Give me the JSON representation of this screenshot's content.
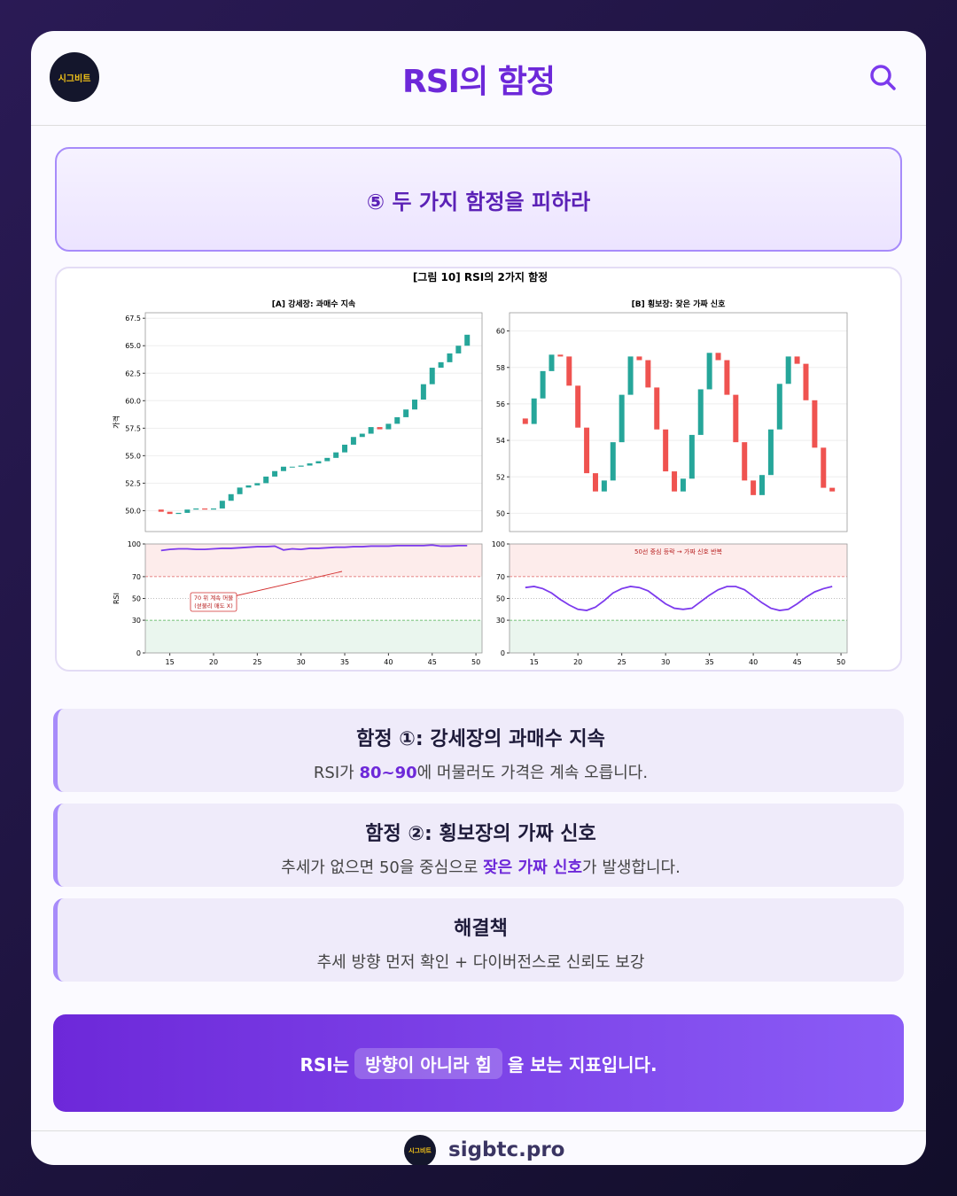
{
  "header": {
    "logo": "시그비트",
    "title": "RSI의 함정"
  },
  "section": {
    "title": "⑤ 두 가지 함정을 피하라"
  },
  "figure": {
    "title": "[그림 10] RSI의 2가지 함정"
  },
  "chart_data": [
    {
      "type": "candlestick",
      "title": "[A] 강세장: 과매수 지속",
      "ylabel": "가격",
      "color_up": "#26a69a",
      "color_down": "#ef5350",
      "x": [
        14,
        15,
        16,
        17,
        18,
        19,
        20,
        21,
        22,
        23,
        24,
        25,
        26,
        27,
        28,
        29,
        30,
        31,
        32,
        33,
        34,
        35,
        36,
        37,
        38,
        39,
        40,
        41,
        42,
        43,
        44,
        45,
        46,
        47,
        48,
        49
      ],
      "open": [
        50.1,
        49.9,
        49.7,
        49.8,
        50.1,
        50.2,
        50.1,
        50.2,
        50.9,
        51.5,
        52.1,
        52.3,
        52.5,
        53.1,
        53.6,
        54.0,
        54.0,
        54.1,
        54.3,
        54.5,
        54.8,
        55.3,
        56.0,
        56.7,
        57.0,
        57.6,
        57.4,
        57.9,
        58.5,
        59.2,
        60.1,
        61.5,
        63.0,
        63.5,
        64.3,
        65.0
      ],
      "close": [
        49.9,
        49.7,
        49.8,
        50.1,
        50.2,
        50.1,
        50.2,
        50.9,
        51.5,
        52.1,
        52.3,
        52.5,
        53.1,
        53.6,
        54.0,
        54.0,
        54.1,
        54.3,
        54.5,
        54.8,
        55.3,
        56.0,
        56.7,
        57.0,
        57.6,
        57.4,
        57.9,
        58.5,
        59.2,
        60.1,
        61.5,
        63.0,
        63.5,
        64.3,
        65.0,
        66.0
      ],
      "xlim": [
        12.2,
        50.7
      ],
      "ylim": [
        48.1,
        68.0
      ],
      "yticks": [
        {
          "value": 50,
          "label": "50.0"
        },
        52.5,
        {
          "value": 55,
          "label": "55.0"
        },
        57.5,
        {
          "value": 60,
          "label": "60.0"
        },
        62.5,
        {
          "value": 65,
          "label": "65.0"
        },
        67.5
      ]
    },
    {
      "type": "candlestick",
      "title": "[B] 횡보장: 잦은 가짜 신호",
      "color_up": "#26a69a",
      "color_down": "#ef5350",
      "x": [
        14,
        15,
        16,
        17,
        18,
        19,
        20,
        21,
        22,
        23,
        24,
        25,
        26,
        27,
        28,
        29,
        30,
        31,
        32,
        33,
        34,
        35,
        36,
        37,
        38,
        39,
        40,
        41,
        42,
        43,
        44,
        45,
        46,
        47,
        48,
        49
      ],
      "open": [
        55.2,
        54.9,
        56.3,
        57.8,
        58.7,
        58.6,
        57.0,
        54.7,
        52.2,
        51.2,
        51.8,
        53.9,
        56.5,
        58.6,
        58.4,
        56.9,
        54.6,
        52.3,
        51.2,
        51.9,
        54.3,
        56.8,
        58.8,
        58.4,
        56.5,
        53.9,
        51.8,
        51.0,
        52.1,
        54.6,
        57.1,
        58.6,
        58.2,
        56.2,
        53.6,
        51.4
      ],
      "close": [
        54.9,
        56.3,
        57.8,
        58.7,
        58.6,
        57.0,
        54.7,
        52.2,
        51.2,
        51.8,
        53.9,
        56.5,
        58.6,
        58.4,
        56.9,
        54.6,
        52.3,
        51.2,
        51.9,
        54.3,
        56.8,
        58.8,
        58.4,
        56.5,
        53.9,
        51.8,
        51.0,
        52.1,
        54.6,
        57.1,
        58.6,
        58.2,
        56.2,
        53.6,
        51.4,
        51.2
      ],
      "xlim": [
        12.2,
        50.7
      ],
      "ylim": [
        49.0,
        61.0
      ],
      "yticks": [
        50,
        52,
        54,
        56,
        58,
        60
      ]
    },
    {
      "type": "line",
      "ylabel": "RSI",
      "color": "#7c3aed",
      "x": [
        14,
        15,
        16,
        17,
        18,
        19,
        20,
        21,
        22,
        23,
        24,
        25,
        26,
        27,
        28,
        29,
        30,
        31,
        32,
        33,
        34,
        35,
        36,
        37,
        38,
        39,
        40,
        41,
        42,
        43,
        44,
        45,
        46,
        47,
        48,
        49
      ],
      "values": [
        94,
        95,
        95.5,
        95.5,
        95,
        95,
        95.5,
        96,
        96,
        96.5,
        97,
        97.5,
        97.5,
        98,
        94.5,
        95.5,
        95,
        96,
        96,
        96.5,
        97,
        97,
        97.5,
        97.5,
        98,
        98,
        98,
        98.5,
        98.5,
        98.5,
        98.5,
        99,
        98,
        98,
        98.5,
        98.5
      ],
      "reference_lines": [
        70,
        50,
        30
      ],
      "annotation": [
        "70 위 계속 머물",
        "(섣불리 매도 X)"
      ],
      "xlim": [
        12.2,
        50.7
      ],
      "ylim": [
        0,
        100
      ],
      "yticks": [
        0,
        30,
        50,
        70,
        100
      ],
      "xticks": [
        15,
        20,
        25,
        30,
        35,
        40,
        45,
        50
      ]
    },
    {
      "type": "line",
      "color": "#7c3aed",
      "x": [
        14,
        15,
        16,
        17,
        18,
        19,
        20,
        21,
        22,
        23,
        24,
        25,
        26,
        27,
        28,
        29,
        30,
        31,
        32,
        33,
        34,
        35,
        36,
        37,
        38,
        39,
        40,
        41,
        42,
        43,
        44,
        45,
        46,
        47,
        48,
        49
      ],
      "values": [
        60,
        61,
        59,
        55,
        49,
        44,
        40,
        39,
        42,
        48,
        55,
        59,
        61,
        60,
        57,
        51,
        45,
        41,
        40,
        41,
        47,
        53,
        58,
        61,
        61,
        58,
        52,
        46,
        41,
        39,
        40,
        45,
        51,
        56,
        59,
        61
      ],
      "reference_lines": [
        70,
        50,
        30
      ],
      "annotation": [
        "50선 중심 등락 → 가짜 신호 반복"
      ],
      "xlim": [
        12.2,
        50.7
      ],
      "ylim": [
        0,
        100
      ],
      "yticks": [
        0,
        30,
        50,
        70,
        100
      ],
      "xticks": [
        15,
        20,
        25,
        30,
        35,
        40,
        45,
        50
      ]
    }
  ],
  "cards": [
    {
      "title": "함정 ①: 강세장의 과매수 지속",
      "before": "RSI가",
      "highlight": "80~90",
      "after": "에 머물러도 가격은 계속 오릅니다."
    },
    {
      "title": "함정 ②: 횡보장의 가짜 신호",
      "before": "추세가 없으면 50을 중심으로",
      "highlight": "잦은 가짜 신호",
      "after": "가 발생합니다."
    },
    {
      "title": "해결책",
      "body": "추세 방향 먼저 확인 + 다이버전스로 신뢰도 보강"
    }
  ],
  "banner": {
    "before": "RSI는",
    "highlight": "방향이 아니라 힘",
    "after": "을 보는 지표입니다."
  },
  "footer": {
    "logo": "시그비트",
    "site": "sigbtc.pro"
  }
}
